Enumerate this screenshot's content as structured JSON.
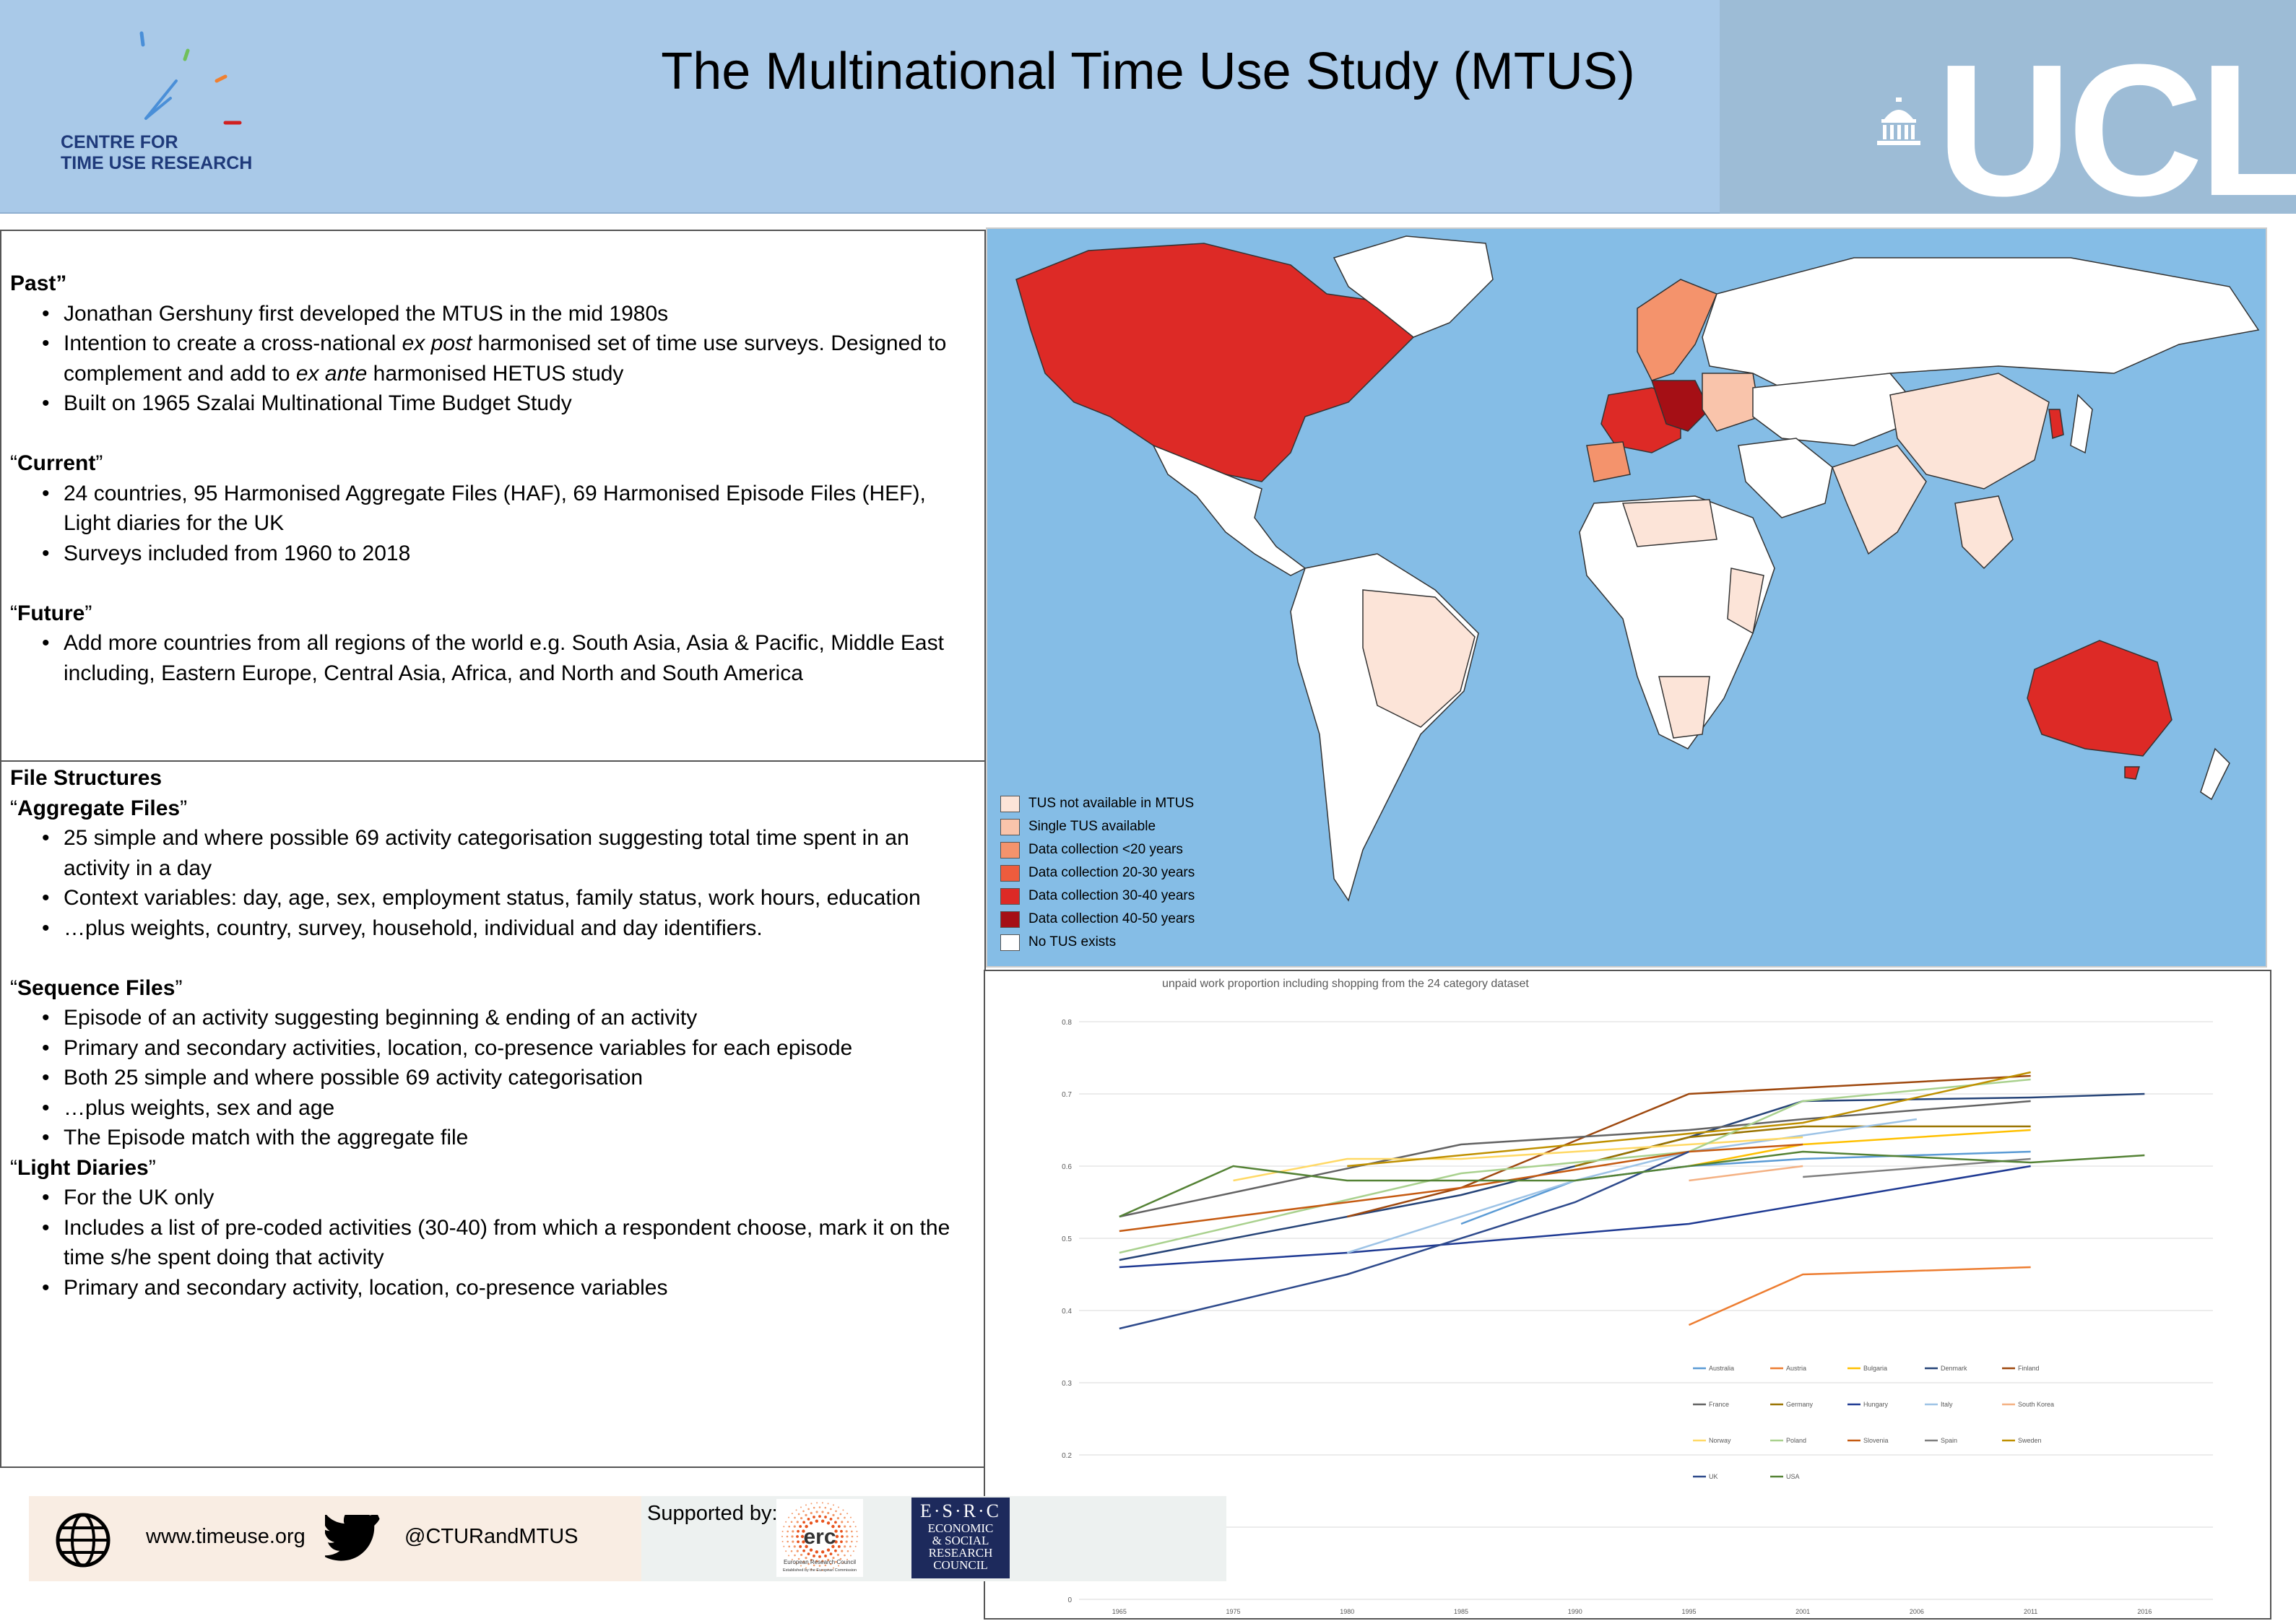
{
  "header": {
    "title": "The Multinational Time Use Study (MTUS)",
    "org_line1": "CENTRE FOR",
    "org_line2": "TIME USE RESEARCH",
    "university": "UCL"
  },
  "past": {
    "heading": "Past",
    "heading_suffix": "”",
    "bullets": [
      "Jonathan Gershuny first developed the MTUS in the mid 1980s",
      "Intention to create a cross-national ex post harmonised set of time use surveys. Designed to complement and add to ex ante harmonised HETUS study",
      "Built on 1965 Szalai Multinational Time Budget Study"
    ]
  },
  "current": {
    "open_quote": "“",
    "heading": "Current",
    "close_quote": "”",
    "bullets": [
      "24 countries, 95 Harmonised Aggregate Files (HAF), 69 Harmonised Episode Files (HEF), Light diaries for the UK",
      "Surveys included from 1960 to 2018"
    ]
  },
  "future": {
    "open_quote": "“",
    "heading": "Future",
    "close_quote": "”",
    "bullets": [
      "Add more countries from all regions of the world e.g. South Asia, Asia & Pacific, Middle East including, Eastern Europe, Central Asia, Africa, and North and South America"
    ]
  },
  "file_structures": {
    "heading": "File Structures",
    "aggregate": {
      "open_quote": "“",
      "heading": "Aggregate Files",
      "close_quote": "”",
      "bullets": [
        "25 simple and where possible 69 activity categorisation suggesting total time spent in an activity in a day",
        "Context variables: day, age, sex, employment status, family status, work hours, education",
        "…plus weights, country, survey, household, individual and day identifiers."
      ]
    },
    "sequence": {
      "open_quote": "“",
      "heading": "Sequence Files",
      "close_quote": "”",
      "bullets": [
        "Episode of an activity suggesting beginning & ending of an activity",
        "Primary and secondary activities, location, co-presence variables for each episode",
        "Both 25 simple and where possible 69 activity categorisation",
        "…plus weights, sex and age",
        "The Episode match with the aggregate file"
      ]
    },
    "light": {
      "open_quote": "“",
      "heading": "Light Diaries",
      "close_quote": "”",
      "bullets": [
        "For the UK only",
        "Includes a list of pre-coded activities (30-40) from which a respondent choose, mark it on the time s/he spent doing that activity",
        "Primary and secondary activity, location, co-presence variables"
      ]
    }
  },
  "map": {
    "legend": [
      {
        "label": "TUS not available in MTUS",
        "color": "#fce4d8"
      },
      {
        "label": "Single TUS available",
        "color": "#f9c4ab"
      },
      {
        "label": "Data collection <20 years",
        "color": "#f4936c"
      },
      {
        "label": "Data collection 20-30 years",
        "color": "#ee5c3d"
      },
      {
        "label": "Data collection 30-40 years",
        "color": "#dd2a26"
      },
      {
        "label": "Data collection 40-50 years",
        "color": "#a50f15"
      },
      {
        "label": "No TUS exists",
        "color": "#ffffff"
      }
    ],
    "ocean_color": "#85bde6"
  },
  "chart_data": {
    "type": "line",
    "title": "unpaid work proportion including shopping from the 24 category dataset",
    "xlabel": "",
    "ylabel": "",
    "ylim": [
      0,
      0.8
    ],
    "yticks": [
      "0",
      "0.1",
      "0.2",
      "0.3",
      "0.4",
      "0.5",
      "0.6",
      "0.7",
      "0.8"
    ],
    "categories": [
      "1965",
      "1975",
      "1980",
      "1985",
      "1990",
      "1995",
      "2001",
      "2006",
      "2011",
      "2016"
    ],
    "grid": true,
    "legend_position": "bottom-right, inside plot",
    "series": [
      {
        "name": "Australia",
        "color": "#5b9bd5",
        "values": [
          null,
          null,
          null,
          0.52,
          0.58,
          0.6,
          0.61,
          null,
          0.62,
          null
        ]
      },
      {
        "name": "Austria",
        "color": "#ed7d31",
        "values": [
          null,
          null,
          null,
          null,
          null,
          0.38,
          0.45,
          null,
          0.46,
          null
        ]
      },
      {
        "name": "Bulgaria",
        "color": "#ffc000",
        "values": [
          null,
          null,
          null,
          null,
          null,
          0.6,
          0.63,
          null,
          0.65,
          null
        ]
      },
      {
        "name": "Denmark",
        "color": "#264478",
        "values": [
          0.47,
          null,
          null,
          0.56,
          null,
          0.64,
          0.69,
          null,
          0.695,
          0.7
        ]
      },
      {
        "name": "Finland",
        "color": "#9e480e",
        "values": [
          null,
          null,
          0.53,
          0.57,
          null,
          0.7,
          null,
          null,
          0.725,
          null
        ]
      },
      {
        "name": "France",
        "color": "#636363",
        "values": [
          0.53,
          null,
          null,
          0.63,
          null,
          0.65,
          0.665,
          null,
          0.69,
          null
        ]
      },
      {
        "name": "Germany",
        "color": "#997300",
        "values": [
          null,
          null,
          null,
          null,
          0.6,
          0.64,
          0.655,
          null,
          0.655,
          null
        ]
      },
      {
        "name": "Hungary",
        "color": "#1f3a93",
        "values": [
          0.46,
          null,
          0.48,
          null,
          null,
          0.52,
          null,
          null,
          0.6,
          null
        ]
      },
      {
        "name": "Italy",
        "color": "#9dc3e6",
        "values": [
          null,
          null,
          0.48,
          null,
          0.58,
          0.62,
          null,
          0.665,
          null,
          null
        ]
      },
      {
        "name": "South Korea",
        "color": "#f4b183",
        "values": [
          null,
          null,
          null,
          null,
          null,
          0.58,
          0.6,
          null,
          null,
          null
        ]
      },
      {
        "name": "Norway",
        "color": "#ffd966",
        "values": [
          null,
          0.58,
          0.61,
          0.61,
          0.62,
          null,
          0.64,
          null,
          null,
          null
        ]
      },
      {
        "name": "Poland",
        "color": "#a9d18e",
        "values": [
          0.48,
          null,
          null,
          0.59,
          null,
          0.62,
          0.69,
          null,
          0.72,
          null
        ]
      },
      {
        "name": "Slovenia",
        "color": "#c55a11",
        "values": [
          0.51,
          null,
          null,
          0.57,
          null,
          0.62,
          0.63,
          null,
          null,
          null
        ]
      },
      {
        "name": "Spain",
        "color": "#7f7f7f",
        "values": [
          null,
          null,
          null,
          null,
          null,
          null,
          0.585,
          null,
          0.61,
          null
        ]
      },
      {
        "name": "Sweden",
        "color": "#bf9000",
        "values": [
          null,
          null,
          0.6,
          null,
          0.63,
          null,
          0.66,
          null,
          0.73,
          null
        ]
      },
      {
        "name": "UK",
        "color": "#2e4a8c",
        "values": [
          0.375,
          null,
          0.45,
          null,
          0.55,
          0.62,
          null,
          null,
          null,
          null
        ]
      },
      {
        "name": "USA",
        "color": "#548235",
        "values": [
          0.53,
          0.6,
          0.58,
          null,
          0.58,
          null,
          0.62,
          null,
          0.605,
          0.615
        ]
      }
    ]
  },
  "footer": {
    "website": "www.timeuse.org",
    "twitter": "@CTURandMTUS",
    "supported_by": "Supported by:",
    "erc_label": "erc",
    "erc_name": "European Research Council",
    "erc_sub": "Established by the European Commission",
    "esrc_title": "E·S·R·C",
    "esrc_lines": [
      "ECONOMIC",
      "& SOCIAL",
      "RESEARCH",
      "COUNCIL"
    ]
  }
}
